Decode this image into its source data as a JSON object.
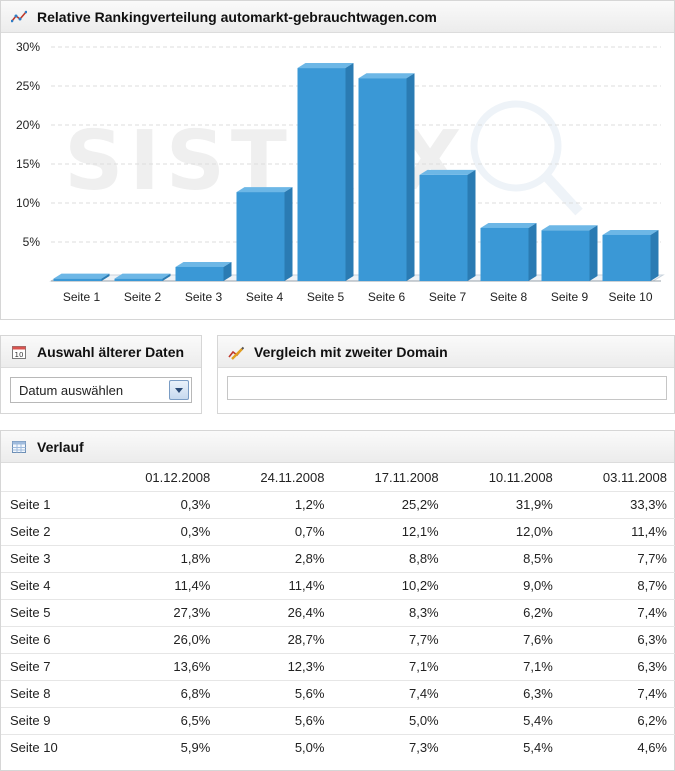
{
  "chart_panel": {
    "title": "Relative Rankingverteilung automarkt-gebrauchtwagen.com",
    "icon": "line-chart-icon"
  },
  "chart_data": {
    "type": "bar",
    "categories": [
      "Seite 1",
      "Seite 2",
      "Seite 3",
      "Seite 4",
      "Seite 5",
      "Seite 6",
      "Seite 7",
      "Seite 8",
      "Seite 9",
      "Seite 10"
    ],
    "values": [
      0.3,
      0.3,
      1.8,
      11.4,
      27.3,
      26.0,
      13.6,
      6.8,
      6.5,
      5.9
    ],
    "ylim": [
      0,
      30
    ],
    "yticks": [
      "30%",
      "25%",
      "20%",
      "15%",
      "10%",
      "5%"
    ],
    "ytick_values": [
      30,
      25,
      20,
      15,
      10,
      5
    ],
    "grid": true,
    "bar_color": "#3a98d6",
    "watermark": "SISTRIX"
  },
  "date_panel": {
    "title": "Auswahl älterer Daten",
    "icon": "calendar-icon",
    "select_value": "Datum auswählen"
  },
  "compare_panel": {
    "title": "Vergleich mit zweiter Domain",
    "icon": "compare-chart-icon",
    "input_value": ""
  },
  "history_panel": {
    "title": "Verlauf",
    "icon": "table-icon",
    "columns": [
      "01.12.2008",
      "24.11.2008",
      "17.11.2008",
      "10.11.2008",
      "03.11.2008"
    ],
    "rows": [
      {
        "label": "Seite 1",
        "values": [
          "0,3%",
          "1,2%",
          "25,2%",
          "31,9%",
          "33,3%"
        ]
      },
      {
        "label": "Seite 2",
        "values": [
          "0,3%",
          "0,7%",
          "12,1%",
          "12,0%",
          "11,4%"
        ]
      },
      {
        "label": "Seite 3",
        "values": [
          "1,8%",
          "2,8%",
          "8,8%",
          "8,5%",
          "7,7%"
        ]
      },
      {
        "label": "Seite 4",
        "values": [
          "11,4%",
          "11,4%",
          "10,2%",
          "9,0%",
          "8,7%"
        ]
      },
      {
        "label": "Seite 5",
        "values": [
          "27,3%",
          "26,4%",
          "8,3%",
          "6,2%",
          "7,4%"
        ]
      },
      {
        "label": "Seite 6",
        "values": [
          "26,0%",
          "28,7%",
          "7,7%",
          "7,6%",
          "6,3%"
        ]
      },
      {
        "label": "Seite 7",
        "values": [
          "13,6%",
          "12,3%",
          "7,1%",
          "7,1%",
          "6,3%"
        ]
      },
      {
        "label": "Seite 8",
        "values": [
          "6,8%",
          "5,6%",
          "7,4%",
          "6,3%",
          "7,4%"
        ]
      },
      {
        "label": "Seite 9",
        "values": [
          "6,5%",
          "5,6%",
          "5,0%",
          "5,4%",
          "6,2%"
        ]
      },
      {
        "label": "Seite 10",
        "values": [
          "5,9%",
          "5,0%",
          "7,3%",
          "5,4%",
          "4,6%"
        ]
      }
    ]
  }
}
